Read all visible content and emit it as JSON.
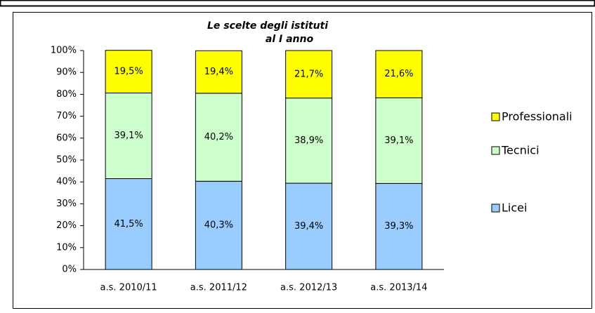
{
  "chart_data": {
    "type": "stacked_bar",
    "title": [
      "Le scelte degli istituti",
      "al I anno"
    ],
    "categories": [
      "a.s. 2010/11",
      "a.s. 2011/12",
      "a.s. 2012/13",
      "a.s. 2013/14"
    ],
    "series": [
      {
        "name": "Licei",
        "color": "#99ccff",
        "values": [
          41.5,
          40.3,
          39.4,
          39.3
        ],
        "value_labels": [
          "41,5%",
          "40,3%",
          "39,4%",
          "39,3%"
        ]
      },
      {
        "name": "Tecnici",
        "color": "#ccffcc",
        "values": [
          39.1,
          40.2,
          38.9,
          39.1
        ],
        "value_labels": [
          "39,1%",
          "40,2%",
          "38,9%",
          "39,1%"
        ]
      },
      {
        "name": "Professionali",
        "color": "#ffff00",
        "values": [
          19.5,
          19.4,
          21.7,
          21.6
        ],
        "value_labels": [
          "19,5%",
          "19,4%",
          "21,7%",
          "21,6%"
        ]
      }
    ],
    "ylim": [
      0,
      100
    ],
    "yticks": [
      {
        "value": 0,
        "label": "0%"
      },
      {
        "value": 10,
        "label": "10%"
      },
      {
        "value": 20,
        "label": "20%"
      },
      {
        "value": 30,
        "label": "30%"
      },
      {
        "value": 40,
        "label": "40%"
      },
      {
        "value": 50,
        "label": "50%"
      },
      {
        "value": 60,
        "label": "60%"
      },
      {
        "value": 70,
        "label": "70%"
      },
      {
        "value": 80,
        "label": "80%"
      },
      {
        "value": 90,
        "label": "90%"
      },
      {
        "value": 100,
        "label": "100%"
      }
    ],
    "legend": "right"
  }
}
